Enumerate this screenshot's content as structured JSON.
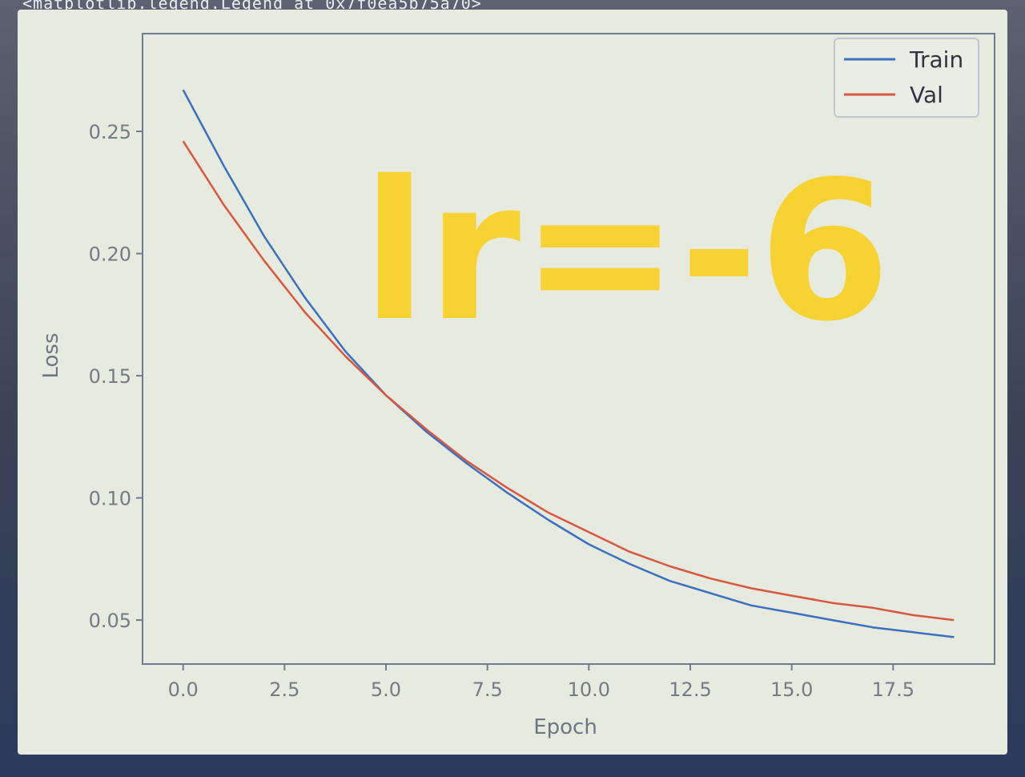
{
  "console_output": "<matplotlib.legend.Legend at 0x7f0ea5b75a70>",
  "annotation": {
    "text": "lr=-6",
    "color": "#f7d233"
  },
  "colors": {
    "train": "#3b6fc0",
    "val": "#d9573f",
    "background": "#e6eadf",
    "axes": "#6e7b93"
  },
  "chart_data": {
    "type": "line",
    "title": "",
    "xlabel": "Epoch",
    "ylabel": "Loss",
    "xlim": [
      -1,
      20
    ],
    "ylim": [
      0.032,
      0.29
    ],
    "xticks": [
      0.0,
      2.5,
      5.0,
      7.5,
      10.0,
      12.5,
      15.0,
      17.5
    ],
    "xtick_labels": [
      "0.0",
      "2.5",
      "5.0",
      "7.5",
      "10.0",
      "12.5",
      "15.0",
      "17.5"
    ],
    "yticks": [
      0.05,
      0.1,
      0.15,
      0.2,
      0.25
    ],
    "ytick_labels": [
      "0.05",
      "0.10",
      "0.15",
      "0.20",
      "0.25"
    ],
    "grid": false,
    "legend_position": "upper right",
    "x": [
      0,
      1,
      2,
      3,
      4,
      5,
      6,
      7,
      8,
      9,
      10,
      11,
      12,
      13,
      14,
      15,
      16,
      17,
      18,
      19
    ],
    "series": [
      {
        "name": "Train",
        "color": "#3b6fc0",
        "values": [
          0.267,
          0.236,
          0.207,
          0.182,
          0.16,
          0.142,
          0.127,
          0.114,
          0.102,
          0.091,
          0.081,
          0.073,
          0.066,
          0.061,
          0.056,
          0.053,
          0.05,
          0.047,
          0.045,
          0.043
        ]
      },
      {
        "name": "Val",
        "color": "#d9573f",
        "values": [
          0.246,
          0.22,
          0.197,
          0.176,
          0.158,
          0.142,
          0.128,
          0.115,
          0.104,
          0.094,
          0.086,
          0.078,
          0.072,
          0.067,
          0.063,
          0.06,
          0.057,
          0.055,
          0.052,
          0.05
        ]
      }
    ]
  }
}
